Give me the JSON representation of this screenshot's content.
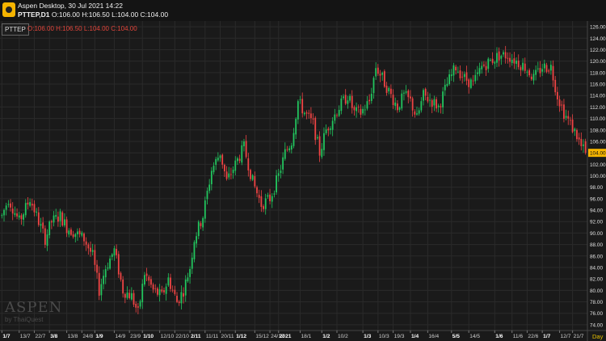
{
  "window": {
    "title": "Aspen Desktop, 30 Jul 2021 14:22",
    "symbol_line": "PTTEP,D1",
    "ohlc_line": "O:106.00 H:106.50 L:104.00 C:104.00"
  },
  "panel": {
    "symbol": "PTTEP",
    "ohlc": "O:106.00 H:106.50 L:104.00 C:104.00",
    "timeframe": "Day"
  },
  "branding": {
    "name": "ASPEN",
    "sub": "by ThaiQuest"
  },
  "colors": {
    "up": "#22c55e",
    "down": "#ef4444",
    "last_price_bg": "#f5b400",
    "grid": "#2a2a2a"
  },
  "chart_data": {
    "type": "candlestick",
    "y_ticks": [
      74,
      76,
      78,
      80,
      82,
      84,
      86,
      88,
      90,
      92,
      94,
      96,
      98,
      100,
      102,
      104,
      106,
      108,
      110,
      112,
      114,
      116,
      118,
      120,
      122,
      124,
      126
    ],
    "y_tick_labels": [
      "74.00",
      "76.00",
      "78.00",
      "80.00",
      "82.00",
      "84.00",
      "86.00",
      "88.00",
      "90.00",
      "92.00",
      "94.00",
      "96.00",
      "98.00",
      "100.00",
      "102.00",
      "104.00",
      "106.00",
      "108.00",
      "110.00",
      "112.00",
      "114.00",
      "116.00",
      "118.00",
      "120.00",
      "122.00",
      "124.00",
      "126.00"
    ],
    "ylim": [
      73,
      127
    ],
    "last_price": 104.0,
    "last_price_label": "104.00",
    "x_labels": [
      {
        "label": "1/7",
        "bar": 0,
        "bold": true
      },
      {
        "label": "13/7",
        "bar": 8,
        "bold": false
      },
      {
        "label": "22/7",
        "bar": 15,
        "bold": false
      },
      {
        "label": "3/8",
        "bar": 22,
        "bold": true
      },
      {
        "label": "13/8",
        "bar": 30,
        "bold": false
      },
      {
        "label": "24/8",
        "bar": 37,
        "bold": false
      },
      {
        "label": "1/9",
        "bar": 43,
        "bold": true
      },
      {
        "label": "14/9",
        "bar": 52,
        "bold": false
      },
      {
        "label": "23/9",
        "bar": 59,
        "bold": false
      },
      {
        "label": "1/10",
        "bar": 65,
        "bold": true
      },
      {
        "label": "12/10",
        "bar": 73,
        "bold": false
      },
      {
        "label": "22/10",
        "bar": 80,
        "bold": false
      },
      {
        "label": "2/11",
        "bar": 87,
        "bold": true
      },
      {
        "label": "11/11",
        "bar": 94,
        "bold": false
      },
      {
        "label": "20/11",
        "bar": 101,
        "bold": false
      },
      {
        "label": "1/12",
        "bar": 108,
        "bold": true
      },
      {
        "label": "15/12",
        "bar": 117,
        "bold": false
      },
      {
        "label": "24/12",
        "bar": 124,
        "bold": false
      },
      {
        "label": "2021",
        "bar": 128,
        "bold": true
      },
      {
        "label": "18/1",
        "bar": 138,
        "bold": false
      },
      {
        "label": "1/2",
        "bar": 148,
        "bold": true
      },
      {
        "label": "10/2",
        "bar": 155,
        "bold": false
      },
      {
        "label": "1/3",
        "bar": 167,
        "bold": true
      },
      {
        "label": "10/3",
        "bar": 174,
        "bold": false
      },
      {
        "label": "19/3",
        "bar": 181,
        "bold": false
      },
      {
        "label": "1/4",
        "bar": 189,
        "bold": true
      },
      {
        "label": "16/4",
        "bar": 197,
        "bold": false
      },
      {
        "label": "5/5",
        "bar": 208,
        "bold": true
      },
      {
        "label": "14/5",
        "bar": 216,
        "bold": false
      },
      {
        "label": "1/6",
        "bar": 228,
        "bold": true
      },
      {
        "label": "11/6",
        "bar": 236,
        "bold": false
      },
      {
        "label": "22/6",
        "bar": 243,
        "bold": false
      },
      {
        "label": "1/7",
        "bar": 250,
        "bold": true
      },
      {
        "label": "12/7",
        "bar": 258,
        "bold": false
      },
      {
        "label": "21/7",
        "bar": 264,
        "bold": false
      }
    ],
    "anchors": [
      [
        0,
        93
      ],
      [
        3,
        96
      ],
      [
        8,
        92
      ],
      [
        13,
        96
      ],
      [
        16,
        93
      ],
      [
        20,
        89
      ],
      [
        23,
        92
      ],
      [
        27,
        93
      ],
      [
        30,
        91
      ],
      [
        34,
        90
      ],
      [
        38,
        89
      ],
      [
        42,
        86
      ],
      [
        45,
        80
      ],
      [
        48,
        84
      ],
      [
        52,
        87
      ],
      [
        56,
        80
      ],
      [
        60,
        79
      ],
      [
        63,
        76
      ],
      [
        66,
        83
      ],
      [
        70,
        80
      ],
      [
        74,
        79
      ],
      [
        77,
        82
      ],
      [
        81,
        78
      ],
      [
        84,
        80
      ],
      [
        87,
        84
      ],
      [
        89,
        89
      ],
      [
        93,
        93
      ],
      [
        97,
        101
      ],
      [
        101,
        104
      ],
      [
        104,
        99
      ],
      [
        108,
        102
      ],
      [
        112,
        105
      ],
      [
        116,
        99
      ],
      [
        120,
        95
      ],
      [
        124,
        96
      ],
      [
        128,
        100
      ],
      [
        131,
        104
      ],
      [
        134,
        106
      ],
      [
        137,
        113
      ],
      [
        140,
        111
      ],
      [
        144,
        109
      ],
      [
        147,
        104
      ],
      [
        150,
        108
      ],
      [
        153,
        110
      ],
      [
        156,
        112
      ],
      [
        160,
        114
      ],
      [
        163,
        111
      ],
      [
        166,
        111
      ],
      [
        170,
        113
      ],
      [
        173,
        119
      ],
      [
        176,
        117
      ],
      [
        180,
        114
      ],
      [
        183,
        112
      ],
      [
        186,
        114
      ],
      [
        189,
        113
      ],
      [
        192,
        110
      ],
      [
        195,
        114
      ],
      [
        199,
        113
      ],
      [
        202,
        112
      ],
      [
        206,
        116
      ],
      [
        210,
        119
      ],
      [
        214,
        117
      ],
      [
        218,
        116
      ],
      [
        222,
        119
      ],
      [
        226,
        120
      ],
      [
        230,
        121
      ],
      [
        234,
        121
      ],
      [
        238,
        120
      ],
      [
        242,
        119
      ],
      [
        246,
        117
      ],
      [
        250,
        119
      ],
      [
        254,
        119
      ],
      [
        257,
        114
      ],
      [
        260,
        111
      ],
      [
        263,
        109
      ],
      [
        266,
        107
      ],
      [
        268,
        105
      ],
      [
        270,
        104
      ]
    ],
    "bar_count": 271
  }
}
